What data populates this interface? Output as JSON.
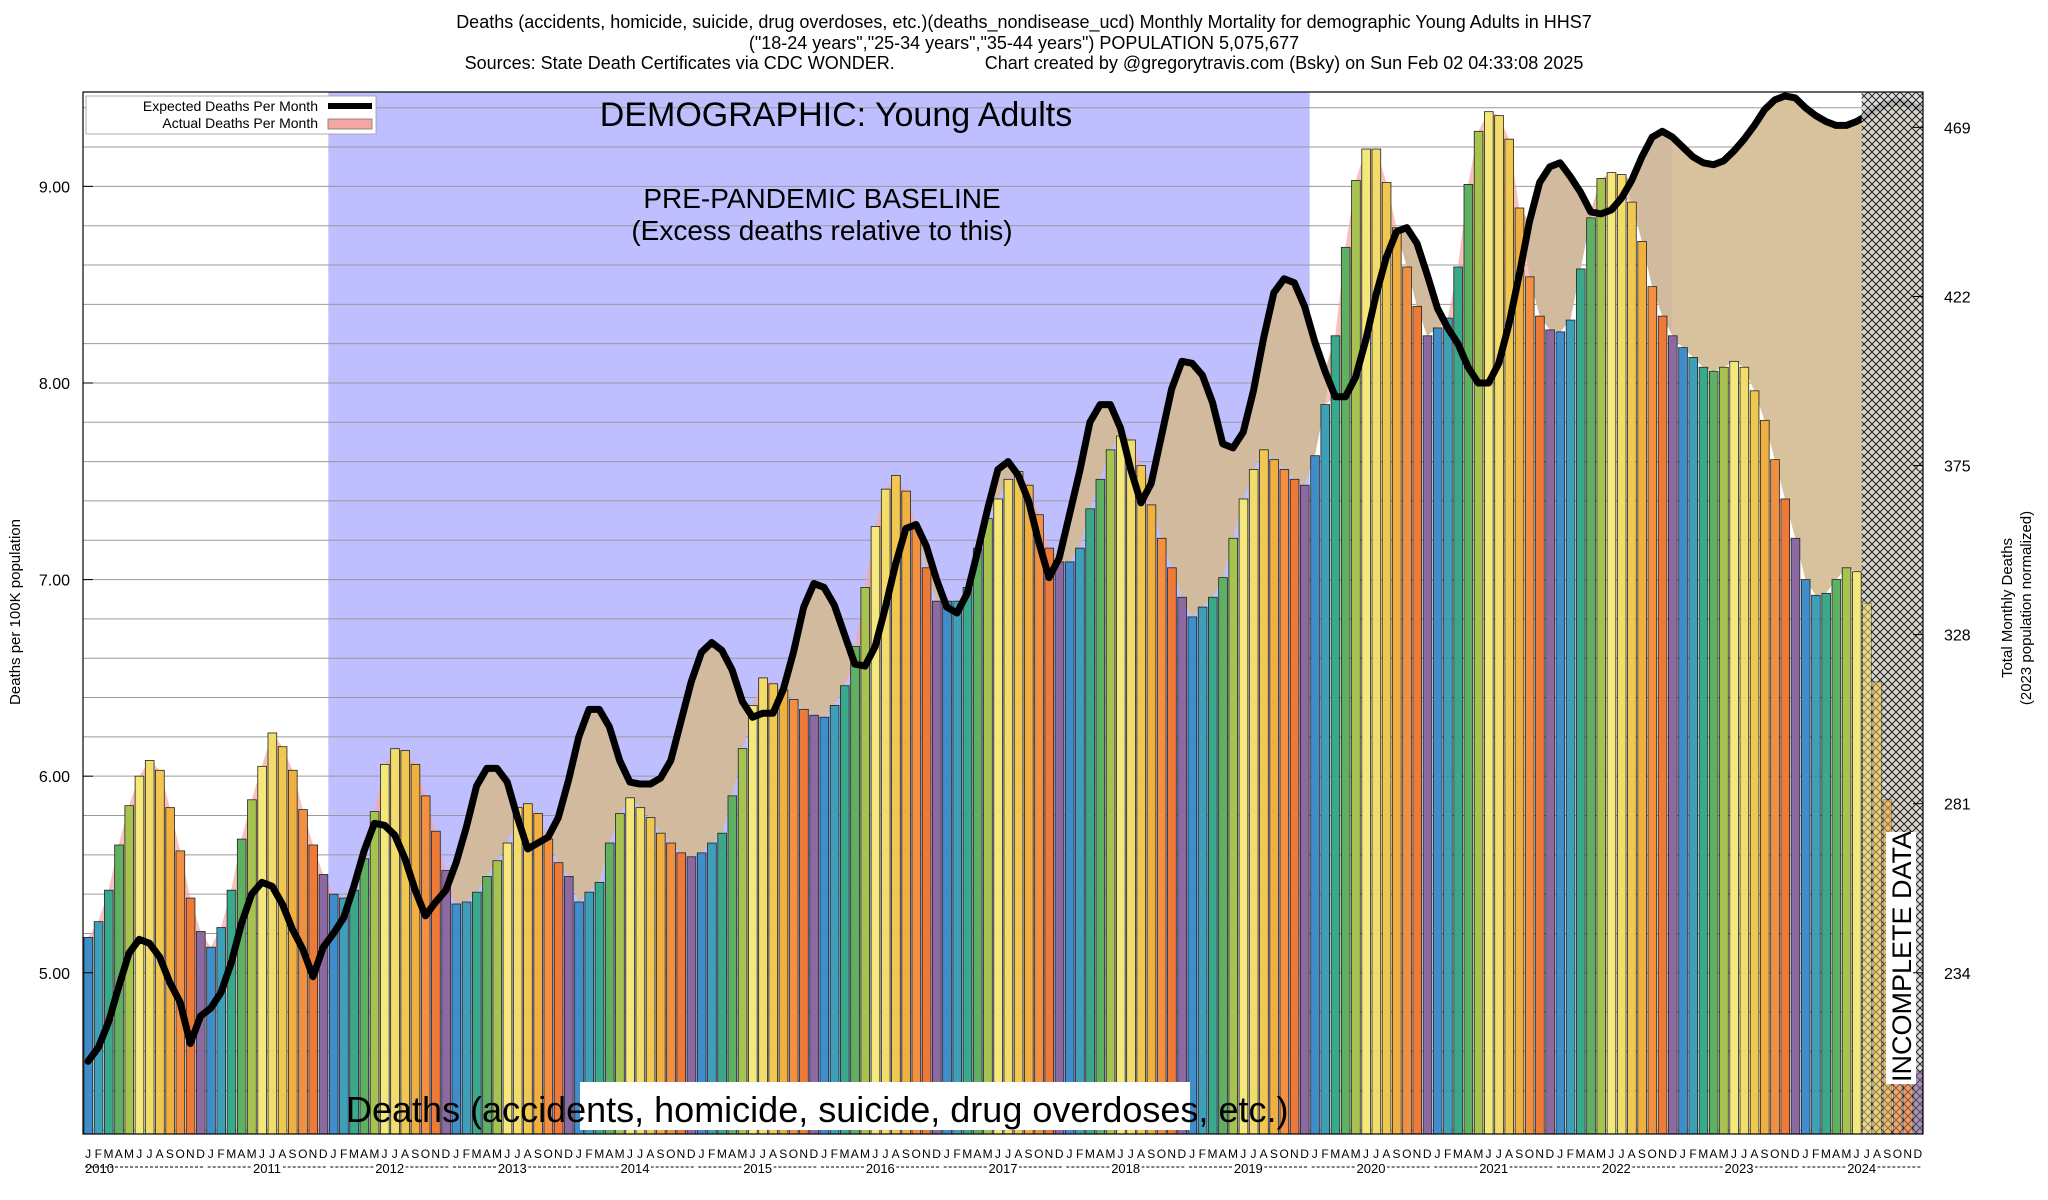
{
  "title": "Deaths (accidents, homicide, suicide, drug overdoses, etc.)(deaths_nondisease_ucd) Monthly Mortality for demographic Young Adults in HHS7",
  "subtitle": "(\"18-24 years\",\"25-34 years\",\"35-44 years\") POPULATION 5,075,677",
  "sources": "Sources: State Death Certificates via CDC WONDER.",
  "credit": "Chart created by @gregorytravis.com (Bsky) on Sun Feb 02 04:33:08 2025",
  "colors": {
    "baseline_region": "#bfbfff",
    "excess_fill": "#7fe89a",
    "excess_fill_recent": "#98ff98",
    "actual_band": "#f4a6a0",
    "expected_line": "#000000",
    "bar_palette": [
      "#3f8ecb",
      "#3e9fb8",
      "#3aa88a",
      "#5fb060",
      "#a7c34f",
      "#f4e87a",
      "#f2dc6a",
      "#f0c850",
      "#f0b040",
      "#f09040",
      "#ee7a38",
      "#8a6aa0"
    ]
  },
  "chart_data": {
    "type": "bar",
    "x_start": "2010-01",
    "x_end": "2024-12",
    "ylabel": "Deaths per 100K population",
    "y2label_line1": "Total Monthly Deaths",
    "y2label_line2": "(2023 population normalized)",
    "ylim": [
      4.18,
      9.48
    ],
    "y_ticks": [
      "5.00",
      "6.00",
      "7.00",
      "8.00",
      "9.00"
    ],
    "y_tick_values": [
      5,
      6,
      7,
      8,
      9
    ],
    "y2_ticks": [
      "234",
      "281",
      "328",
      "375",
      "422",
      "469"
    ],
    "y2_tick_values": [
      234,
      281,
      328,
      375,
      422,
      469
    ],
    "legend": [
      "Expected Deaths Per Month",
      "Actual Deaths Per Month"
    ],
    "legend_position": "top-left",
    "grid": true,
    "month_letters": [
      "J",
      "F",
      "M",
      "A",
      "M",
      "J",
      "J",
      "A",
      "S",
      "O",
      "N",
      "D"
    ],
    "years": [
      "2010",
      "2011",
      "2012",
      "2013",
      "2014",
      "2015",
      "2016",
      "2017",
      "2018",
      "2019",
      "2020",
      "2021",
      "2022",
      "2023",
      "2024"
    ],
    "annotations": {
      "demographic": "DEMOGRAPHIC: Young Adults",
      "baseline_line1": "PRE-PANDEMIC BASELINE",
      "baseline_line2": "(Excess deaths relative to this)",
      "cause": "Deaths (accidents, homicide, suicide, drug overdoses, etc.)",
      "incomplete": "INCOMPLETE DATA"
    },
    "baseline_period": [
      "2012-01",
      "2019-12"
    ],
    "incomplete_from": "2024-07",
    "actual": [
      5.18,
      5.26,
      5.42,
      5.65,
      5.85,
      6.0,
      6.08,
      6.03,
      5.84,
      5.62,
      5.38,
      5.21,
      5.13,
      5.23,
      5.42,
      5.68,
      5.88,
      6.05,
      6.22,
      6.15,
      6.03,
      5.83,
      5.65,
      5.5,
      5.4,
      5.38,
      5.42,
      5.58,
      5.82,
      6.06,
      6.14,
      6.13,
      6.06,
      5.9,
      5.72,
      5.52,
      5.35,
      5.36,
      5.41,
      5.49,
      5.57,
      5.66,
      5.84,
      5.86,
      5.81,
      5.68,
      5.56,
      5.49,
      5.36,
      5.41,
      5.46,
      5.66,
      5.81,
      5.89,
      5.84,
      5.79,
      5.71,
      5.66,
      5.61,
      5.59,
      5.61,
      5.66,
      5.71,
      5.9,
      6.14,
      6.36,
      6.5,
      6.47,
      6.44,
      6.39,
      6.34,
      6.31,
      6.3,
      6.36,
      6.46,
      6.66,
      6.96,
      7.27,
      7.46,
      7.53,
      7.45,
      7.26,
      7.06,
      6.89,
      6.89,
      6.89,
      6.96,
      7.16,
      7.31,
      7.41,
      7.51,
      7.55,
      7.48,
      7.33,
      7.16,
      7.09,
      7.09,
      7.16,
      7.36,
      7.51,
      7.66,
      7.73,
      7.71,
      7.58,
      7.38,
      7.21,
      7.06,
      6.91,
      6.81,
      6.86,
      6.91,
      7.01,
      7.21,
      7.41,
      7.56,
      7.66,
      7.61,
      7.56,
      7.51,
      7.48,
      7.63,
      7.89,
      8.24,
      8.69,
      9.03,
      9.19,
      9.19,
      9.02,
      8.79,
      8.59,
      8.39,
      8.24,
      8.28,
      8.33,
      8.59,
      9.01,
      9.28,
      9.38,
      9.36,
      9.24,
      8.89,
      8.54,
      8.34,
      8.27,
      8.26,
      8.32,
      8.58,
      8.84,
      9.04,
      9.07,
      9.06,
      8.92,
      8.72,
      8.49,
      8.34,
      8.24,
      8.18,
      8.13,
      8.08,
      8.06,
      8.08,
      8.11,
      8.08,
      7.96,
      7.81,
      7.61,
      7.41,
      7.21,
      7.0,
      6.92,
      6.93,
      7.0,
      7.06,
      7.04,
      6.88,
      6.48,
      5.88,
      5.4,
      4.95,
      4.5
    ],
    "expected": [
      4.55,
      4.62,
      4.75,
      4.93,
      5.1,
      5.17,
      5.15,
      5.08,
      4.95,
      4.85,
      4.64,
      4.78,
      4.82,
      4.9,
      5.05,
      5.25,
      5.4,
      5.46,
      5.44,
      5.35,
      5.22,
      5.12,
      4.98,
      5.13,
      5.2,
      5.28,
      5.44,
      5.62,
      5.76,
      5.75,
      5.7,
      5.58,
      5.42,
      5.29,
      5.36,
      5.42,
      5.56,
      5.74,
      5.95,
      6.04,
      6.04,
      5.97,
      5.79,
      5.63,
      5.66,
      5.69,
      5.79,
      5.98,
      6.2,
      6.34,
      6.34,
      6.25,
      6.08,
      5.97,
      5.96,
      5.96,
      5.99,
      6.08,
      6.28,
      6.48,
      6.63,
      6.68,
      6.64,
      6.54,
      6.38,
      6.3,
      6.32,
      6.32,
      6.44,
      6.63,
      6.86,
      6.98,
      6.96,
      6.87,
      6.72,
      6.57,
      6.56,
      6.66,
      6.86,
      7.08,
      7.26,
      7.28,
      7.17,
      7.0,
      6.86,
      6.83,
      6.93,
      7.14,
      7.36,
      7.56,
      7.6,
      7.53,
      7.4,
      7.19,
      7.01,
      7.11,
      7.33,
      7.55,
      7.8,
      7.89,
      7.89,
      7.77,
      7.56,
      7.39,
      7.49,
      7.73,
      7.97,
      8.11,
      8.1,
      8.04,
      7.9,
      7.69,
      7.67,
      7.75,
      7.96,
      8.23,
      8.46,
      8.53,
      8.51,
      8.39,
      8.21,
      8.06,
      7.93,
      7.93,
      8.03,
      8.22,
      8.45,
      8.64,
      8.77,
      8.79,
      8.71,
      8.55,
      8.38,
      8.28,
      8.2,
      8.08,
      8.0,
      8.0,
      8.1,
      8.3,
      8.55,
      8.82,
      9.02,
      9.1,
      9.12,
      9.05,
      8.97,
      8.87,
      8.86,
      8.88,
      8.94,
      9.03,
      9.15,
      9.25,
      9.28,
      9.25,
      9.2,
      9.15,
      9.12,
      9.11,
      9.13,
      9.18,
      9.24,
      9.31,
      9.39,
      9.44,
      9.46,
      9.45,
      9.4,
      9.36,
      9.33,
      9.31,
      9.31,
      9.33,
      9.36,
      9.4,
      9.42,
      9.43,
      9.42,
      9.4
    ]
  }
}
